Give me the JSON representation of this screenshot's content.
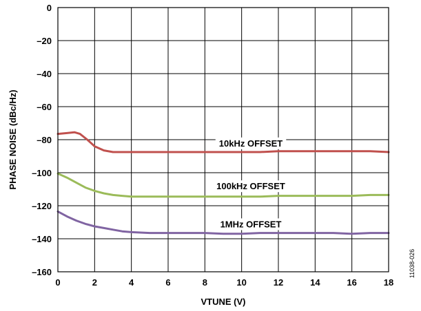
{
  "chart_data": {
    "type": "line",
    "xlabel": "VTUNE (V)",
    "ylabel": "PHASE NOISE (dBc/Hz)",
    "xlim": [
      0,
      18
    ],
    "ylim": [
      -160,
      0
    ],
    "x_ticks": [
      "0",
      "2",
      "4",
      "6",
      "8",
      "10",
      "12",
      "14",
      "16",
      "18"
    ],
    "y_ticks": [
      "0",
      "–20",
      "–40",
      "–60",
      "–80",
      "–100",
      "–120",
      "–140",
      "–160"
    ],
    "grid": true,
    "figure_id": "11038-026",
    "series": [
      {
        "name": "10kHz OFFSET",
        "color": "#c0504d",
        "x": [
          0,
          0.5,
          0.9,
          1.2,
          1.6,
          2,
          2.5,
          3,
          3.5,
          4,
          5,
          6,
          7,
          8,
          9,
          10,
          11,
          12,
          13,
          14,
          15,
          16,
          17,
          18
        ],
        "y": [
          -76.5,
          -76,
          -75.5,
          -76.5,
          -80,
          -84,
          -86.5,
          -87.5,
          -87.5,
          -87.5,
          -87.5,
          -87.5,
          -87.5,
          -87.5,
          -87.5,
          -87.5,
          -87.5,
          -87,
          -87,
          -87,
          -87,
          -87,
          -87,
          -87.5
        ]
      },
      {
        "name": "100kHz OFFSET",
        "color": "#9bbb59",
        "x": [
          0,
          0.5,
          1,
          1.5,
          2,
          2.5,
          3,
          3.5,
          4,
          5,
          6,
          7,
          8,
          9,
          10,
          11,
          12,
          13,
          14,
          15,
          16,
          17,
          18
        ],
        "y": [
          -100.5,
          -103,
          -106,
          -109,
          -111,
          -112.5,
          -113.5,
          -114,
          -114.5,
          -114.5,
          -114.5,
          -114.5,
          -114.5,
          -114.5,
          -114.5,
          -114.5,
          -114,
          -114,
          -114,
          -114,
          -114,
          -113.5,
          -113.5
        ]
      },
      {
        "name": "1MHz OFFSET",
        "color": "#8064a2",
        "x": [
          0,
          0.5,
          1,
          1.5,
          2,
          2.5,
          3,
          3.5,
          4,
          5,
          6,
          7,
          8,
          9,
          10,
          11,
          12,
          13,
          14,
          15,
          16,
          17,
          18
        ],
        "y": [
          -123.5,
          -126.5,
          -129,
          -131,
          -132.5,
          -133.5,
          -134.5,
          -135.5,
          -136,
          -136.5,
          -136.5,
          -136.5,
          -136.5,
          -137,
          -137,
          -136.5,
          -136.5,
          -136.5,
          -136.5,
          -136.5,
          -137,
          -136.5,
          -136.5
        ]
      }
    ],
    "annotations": [
      {
        "text": "10kHz OFFSET",
        "x": 10.5,
        "y": -82
      },
      {
        "text": "100kHz OFFSET",
        "x": 10.5,
        "y": -108
      },
      {
        "text": "1MHz OFFSET",
        "x": 10.5,
        "y": -131
      }
    ]
  }
}
